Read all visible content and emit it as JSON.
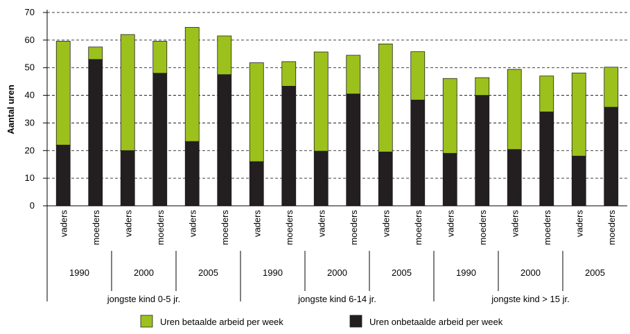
{
  "chart_data": {
    "type": "bar",
    "stacked": true,
    "ylabel": "Aantal uren",
    "ylim": [
      0,
      70
    ],
    "yticks": [
      0,
      10,
      20,
      30,
      40,
      50,
      60,
      70
    ],
    "grid": "horizontal dashed",
    "legend_position": "bottom",
    "groups": [
      {
        "label": "jongste kind 0-5 jr.",
        "years": [
          "1990",
          "2000",
          "2005"
        ]
      },
      {
        "label": "jongste kind 6-14 jr.",
        "years": [
          "1990",
          "2000",
          "2005"
        ]
      },
      {
        "label": "jongste kind > 15 jr.",
        "years": [
          "1990",
          "2000",
          "2005"
        ]
      }
    ],
    "categories": [
      "vaders",
      "moeders",
      "vaders",
      "moeders",
      "vaders",
      "moeders",
      "vaders",
      "moeders",
      "vaders",
      "moeders",
      "vaders",
      "moeders",
      "vaders",
      "moeders",
      "vaders",
      "moeders",
      "vaders",
      "moeders"
    ],
    "series": [
      {
        "name": "Uren onbetaalde arbeid per week",
        "color": "#231f20",
        "values": [
          22,
          53,
          20,
          48,
          23.3,
          47.5,
          16,
          43.3,
          19.8,
          40.5,
          19.5,
          38.3,
          19,
          40,
          20.4,
          34,
          18,
          35.7
        ]
      },
      {
        "name": "Uren betaalde arbeid per week",
        "color": "#9cc11d",
        "values": [
          37.6,
          4.5,
          42,
          11.6,
          41.3,
          14,
          35.8,
          8.9,
          35.9,
          14,
          39.1,
          17.5,
          27.1,
          6.4,
          29,
          13,
          30.1,
          14.5
        ]
      }
    ],
    "legend_order": [
      1,
      0
    ]
  }
}
